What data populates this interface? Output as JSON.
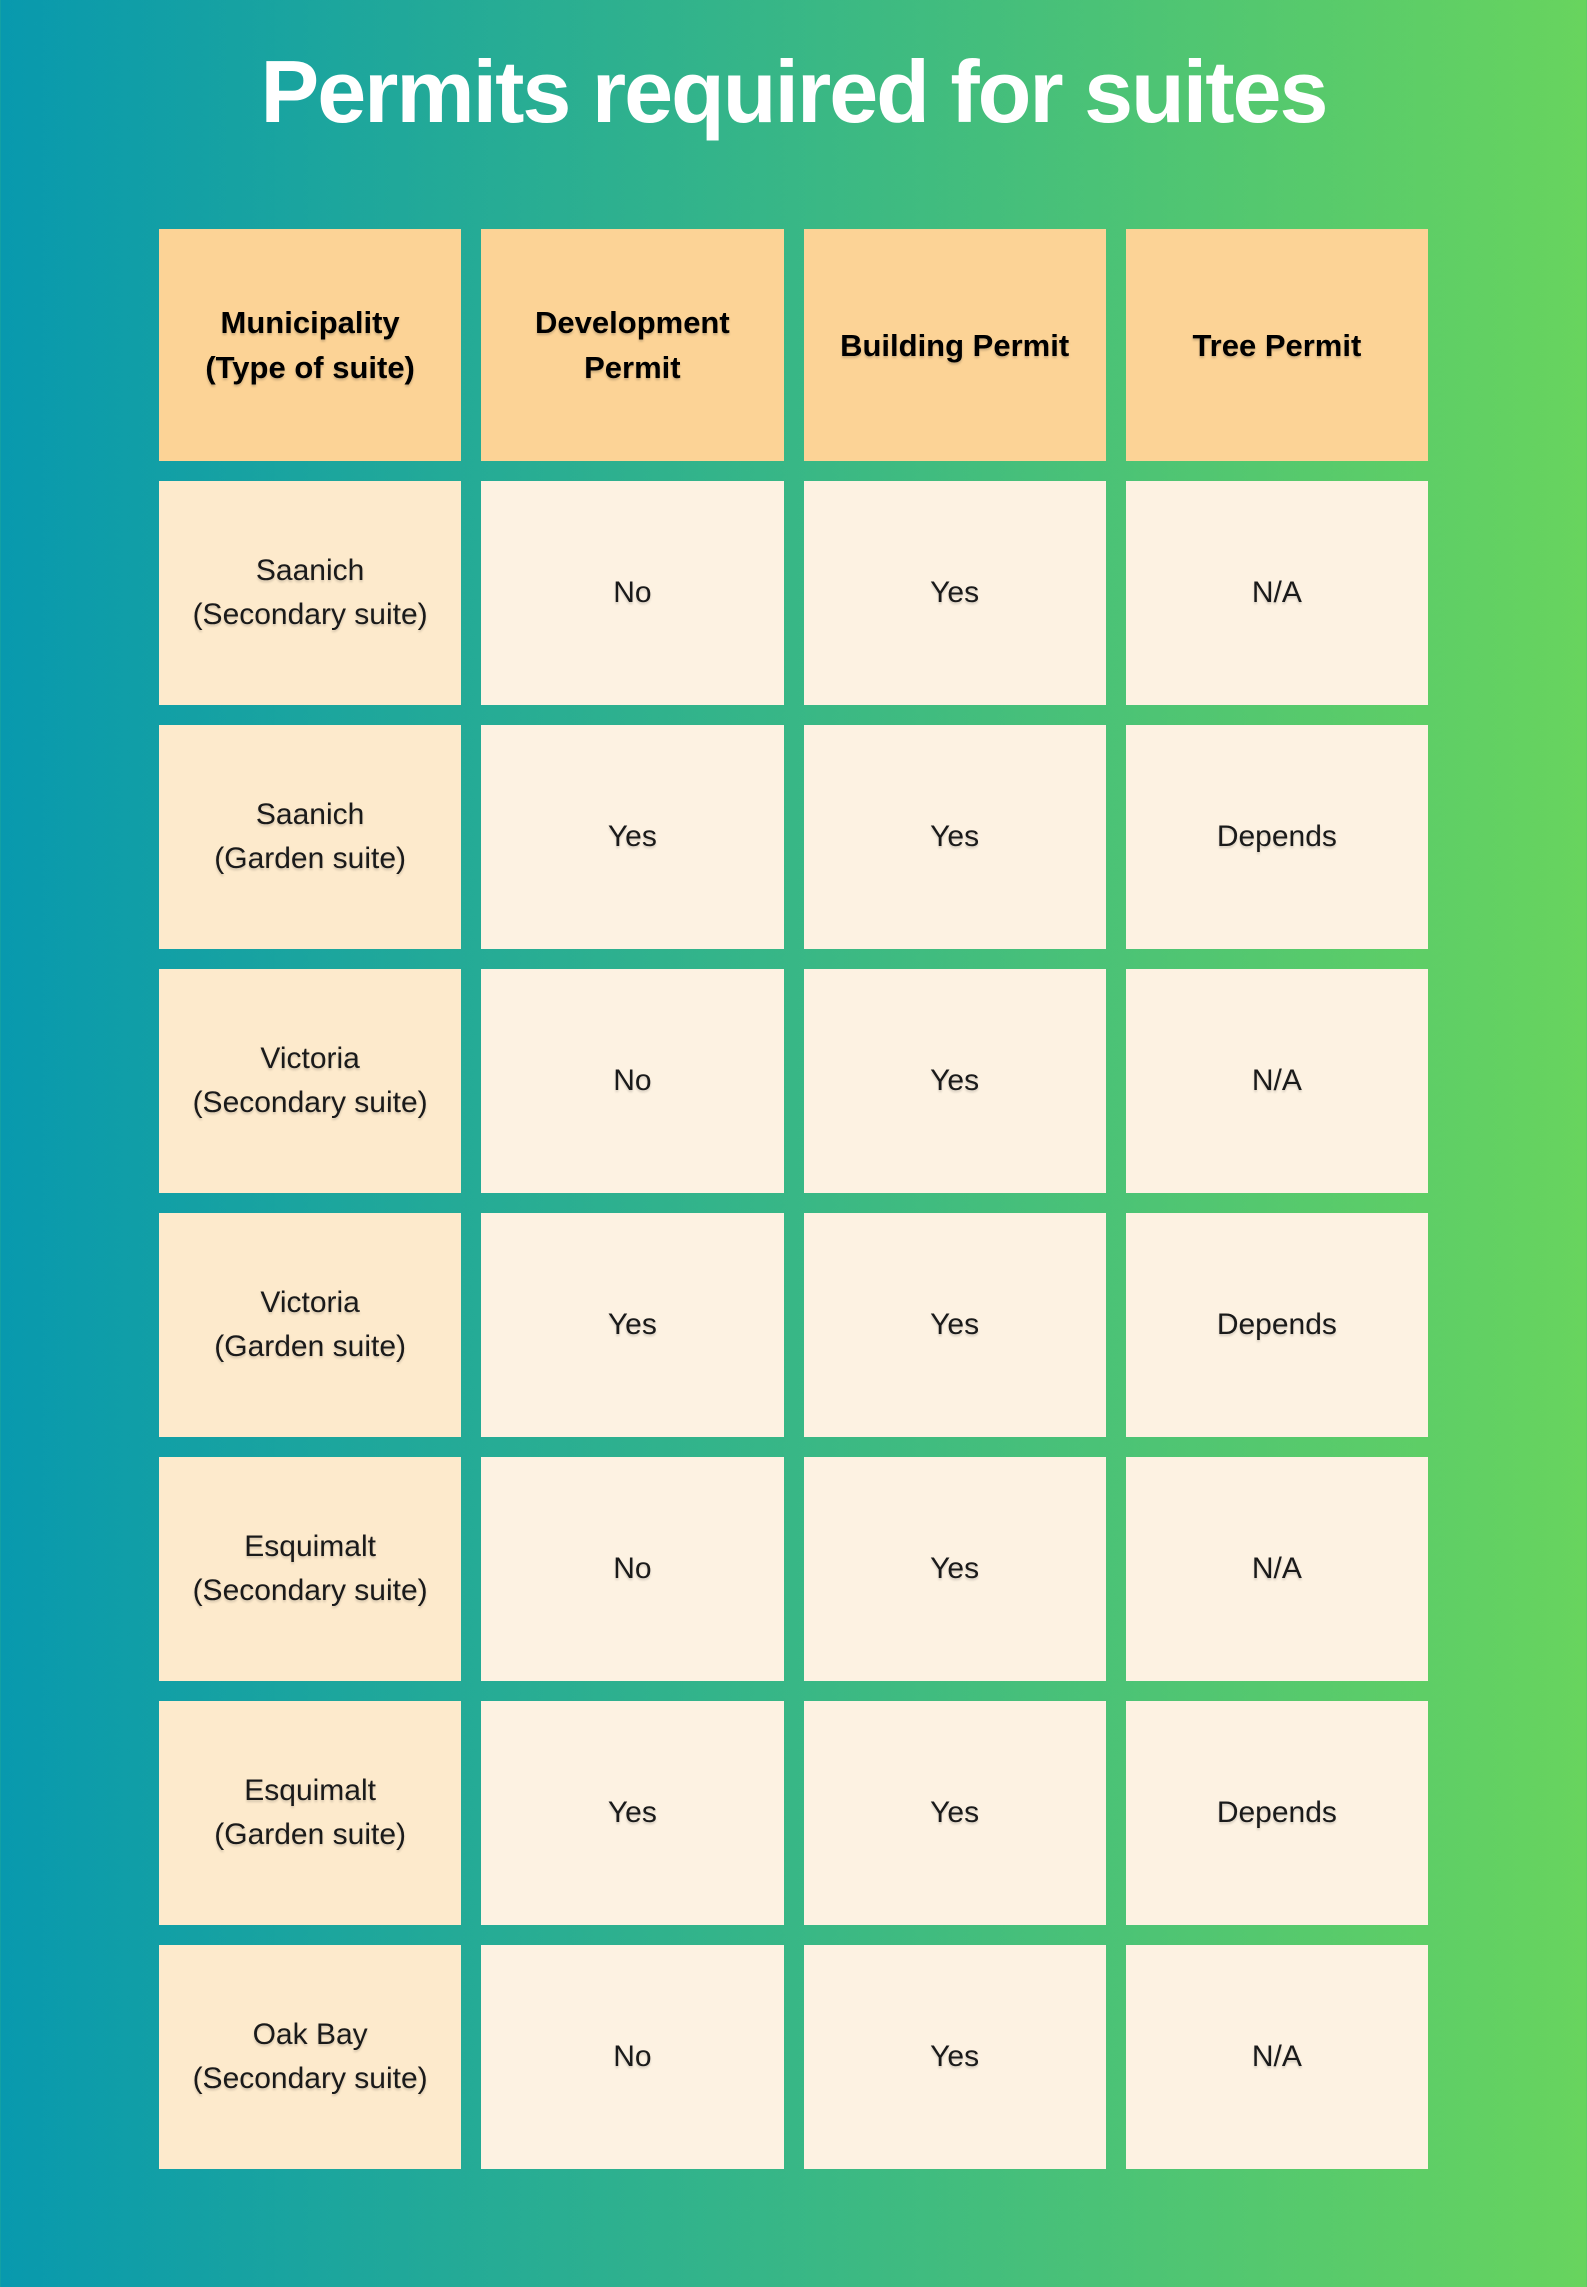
{
  "title": "Permits required for suites",
  "colors": {
    "background_gradient_start": "#0899ae",
    "background_gradient_end": "#68d45e",
    "header_cell_bg": "#fcd396",
    "row_label_cell_bg": "#fdeacc",
    "data_cell_bg": "#fdf2e2",
    "title_text": "#ffffff",
    "cell_text": "#1a1a1a"
  },
  "chart_data": {
    "type": "table",
    "title": "Permits required for suites",
    "columns": [
      "Municipality (Type of suite)",
      "Development Permit",
      "Building Permit",
      "Tree Permit"
    ],
    "rows": [
      [
        "Saanich (Secondary suite)",
        "No",
        "Yes",
        "N/A"
      ],
      [
        "Saanich (Garden suite)",
        "Yes",
        "Yes",
        "Depends"
      ],
      [
        "Victoria (Secondary suite)",
        "No",
        "Yes",
        "N/A"
      ],
      [
        "Victoria (Garden suite)",
        "Yes",
        "Yes",
        "Depends"
      ],
      [
        "Esquimalt (Secondary suite)",
        "No",
        "Yes",
        "N/A"
      ],
      [
        "Esquimalt (Garden suite)",
        "Yes",
        "Yes",
        "Depends"
      ],
      [
        "Oak Bay (Secondary suite)",
        "No",
        "Yes",
        "N/A"
      ]
    ]
  },
  "table": {
    "headers": [
      {
        "lines": [
          "Municipality",
          "(Type of suite)"
        ]
      },
      {
        "lines": [
          "Development",
          "Permit"
        ]
      },
      {
        "lines": [
          "Building Permit"
        ]
      },
      {
        "lines": [
          "Tree Permit"
        ]
      }
    ],
    "rows": [
      {
        "lines": [
          "Saanich",
          "(Secondary suite)"
        ],
        "cells": [
          "No",
          "Yes",
          "N/A"
        ]
      },
      {
        "lines": [
          "Saanich",
          "(Garden suite)"
        ],
        "cells": [
          "Yes",
          "Yes",
          "Depends"
        ]
      },
      {
        "lines": [
          "Victoria",
          "(Secondary suite)"
        ],
        "cells": [
          "No",
          "Yes",
          "N/A"
        ]
      },
      {
        "lines": [
          "Victoria",
          "(Garden suite)"
        ],
        "cells": [
          "Yes",
          "Yes",
          "Depends"
        ]
      },
      {
        "lines": [
          "Esquimalt",
          "(Secondary suite)"
        ],
        "cells": [
          "No",
          "Yes",
          "N/A"
        ]
      },
      {
        "lines": [
          "Esquimalt",
          "(Garden suite)"
        ],
        "cells": [
          "Yes",
          "Yes",
          "Depends"
        ]
      },
      {
        "lines": [
          "Oak Bay",
          "(Secondary suite)"
        ],
        "cells": [
          "No",
          "Yes",
          "N/A"
        ]
      }
    ]
  }
}
